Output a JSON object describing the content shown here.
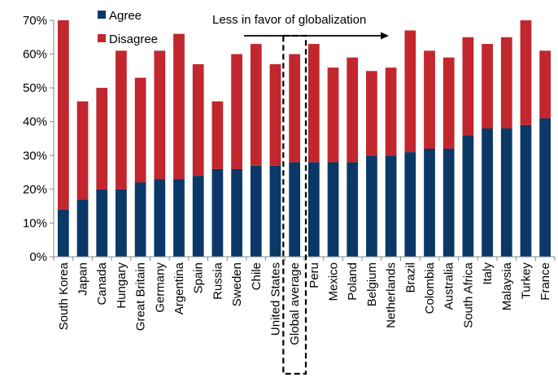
{
  "chart_data": {
    "type": "bar",
    "stacked": true,
    "categories": [
      "South Korea",
      "Japan",
      "Canada",
      "Hungary",
      "Great Britain",
      "Germany",
      "Argentina",
      "Spain",
      "Russia",
      "Sweden",
      "Chile",
      "United States",
      "Global average",
      "Peru",
      "Mexico",
      "Poland",
      "Belgium",
      "Netherlands",
      "Brazil",
      "Colombia",
      "Australia",
      "South Africa",
      "Italy",
      "Malaysia",
      "Turkey",
      "France"
    ],
    "series": [
      {
        "name": "Agree",
        "color": "#0b3866",
        "values": [
          14,
          17,
          20,
          20,
          22,
          23,
          23,
          24,
          26,
          26,
          27,
          27,
          28,
          28,
          28,
          28,
          30,
          30,
          31,
          32,
          32,
          36,
          38,
          38,
          39,
          41
        ]
      },
      {
        "name": "Disagree",
        "color": "#c1272d",
        "values": [
          56,
          29,
          30,
          41,
          31,
          38,
          43,
          33,
          20,
          34,
          36,
          30,
          32,
          35,
          28,
          31,
          25,
          26,
          36,
          29,
          27,
          29,
          25,
          27,
          31,
          20
        ]
      }
    ],
    "ylim": [
      0,
      70
    ],
    "yticks": [
      0,
      10,
      20,
      30,
      40,
      50,
      60,
      70
    ],
    "ytick_labels": [
      "0%",
      "10%",
      "20%",
      "30%",
      "40%",
      "50%",
      "60%",
      "70%"
    ],
    "legend_position": "top-left",
    "annotation": "Less in favor of globalization",
    "highlight_category": "Global average",
    "grid": false
  }
}
